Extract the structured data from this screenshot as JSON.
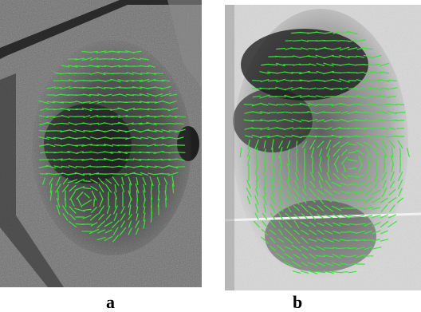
{
  "panels": [
    {
      "label": "a"
    },
    {
      "label": "b"
    }
  ],
  "colors": {
    "orientation_line": "#39e539",
    "print_a_background": "#6f6f6f",
    "print_b_background": "#d8d8d8"
  }
}
